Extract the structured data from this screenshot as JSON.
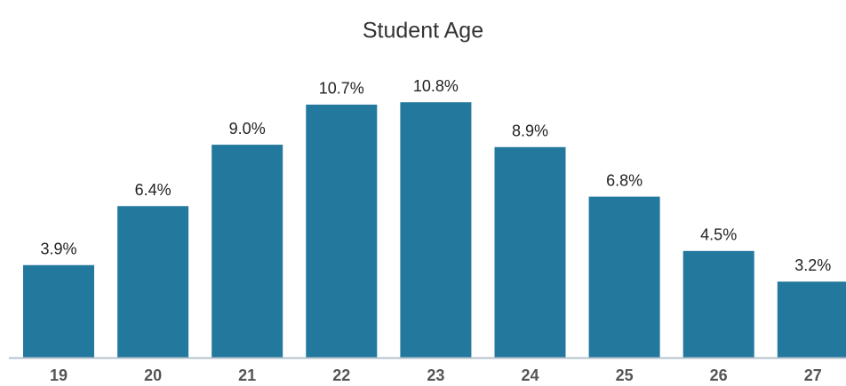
{
  "chart_data": {
    "type": "bar",
    "title": "Student Age",
    "categories": [
      "19",
      "20",
      "21",
      "22",
      "23",
      "24",
      "25",
      "26",
      "27"
    ],
    "values": [
      3.9,
      6.4,
      9.0,
      10.7,
      10.8,
      8.9,
      6.8,
      4.5,
      3.2
    ],
    "value_labels": [
      "3.9%",
      "6.4%",
      "9.0%",
      "10.7%",
      "10.8%",
      "8.9%",
      "6.8%",
      "4.5%",
      "3.2%"
    ],
    "color": "#23789d"
  }
}
